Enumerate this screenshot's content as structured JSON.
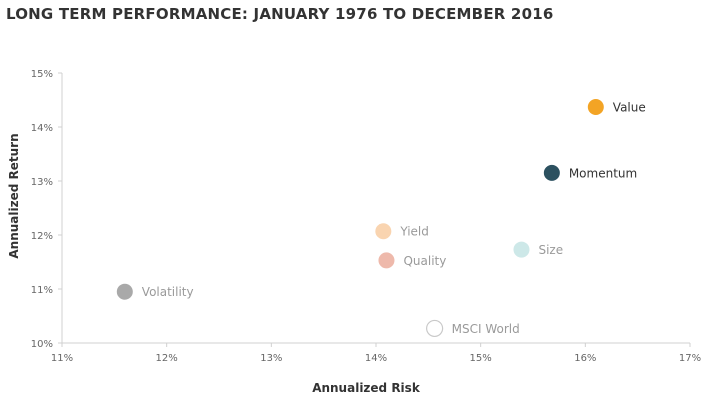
{
  "chart_data": {
    "type": "scatter",
    "title": "LONG TERM PERFORMANCE: JANUARY 1976 TO DECEMBER 2016",
    "xlabel": "Annualized Risk",
    "ylabel": "Annualized Return",
    "xlim": [
      11,
      17
    ],
    "ylim": [
      10,
      15
    ],
    "x_ticks": [
      "11%",
      "12%",
      "13%",
      "14%",
      "15%",
      "16%",
      "17%"
    ],
    "y_ticks": [
      "10%",
      "11%",
      "12%",
      "13%",
      "14%",
      "15%"
    ],
    "grid": false,
    "points": [
      {
        "name": "Value",
        "x": 16.1,
        "y": 14.37,
        "color": "#f3a425",
        "label_color": "#333333",
        "filled": true
      },
      {
        "name": "Momentum",
        "x": 15.68,
        "y": 13.15,
        "color": "#2c5160",
        "label_color": "#333333",
        "filled": true
      },
      {
        "name": "Yield",
        "x": 14.07,
        "y": 12.07,
        "color": "#f9d4b0",
        "label_color": "#9a9a9a",
        "filled": true
      },
      {
        "name": "Size",
        "x": 15.39,
        "y": 11.73,
        "color": "#cde8e8",
        "label_color": "#9a9a9a",
        "filled": true
      },
      {
        "name": "Quality",
        "x": 14.1,
        "y": 11.53,
        "color": "#eeb9ab",
        "label_color": "#9a9a9a",
        "filled": true
      },
      {
        "name": "Volatility",
        "x": 11.6,
        "y": 10.95,
        "color": "#a9a9a9",
        "label_color": "#9a9a9a",
        "filled": true
      },
      {
        "name": "MSCI World",
        "x": 14.56,
        "y": 10.27,
        "color": "#c9c9c9",
        "label_color": "#9a9a9a",
        "filled": false
      }
    ]
  }
}
